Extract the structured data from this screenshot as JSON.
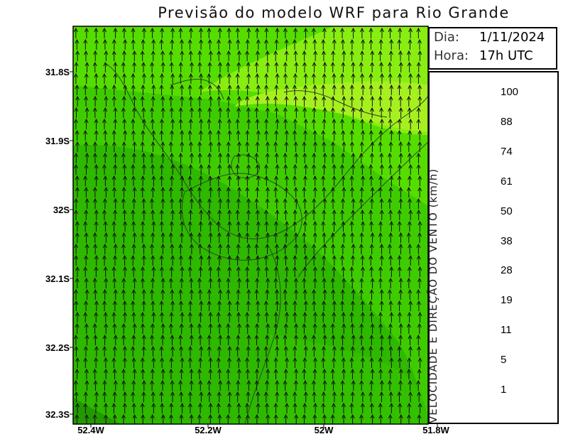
{
  "title": "Previsão do modelo WRF para Rio Grande",
  "info": {
    "day_label": "Dia:",
    "day_value": "1/11/2024",
    "hour_label": "Hora:",
    "hour_value": "17h UTC"
  },
  "colorbar": {
    "label": "VELOCIDADE E DIREÇÃO DO VENTO (km/h)",
    "ticks": [
      "100",
      "88",
      "74",
      "61",
      "50",
      "38",
      "28",
      "19",
      "11",
      "5",
      "1"
    ],
    "colors": [
      "#cc00aa",
      "#b0004a",
      "#9c0000",
      "#d00000",
      "#ff2a00",
      "#ff6a00",
      "#ff9a00",
      "#ffcc00",
      "#ffee00",
      "#ccff00",
      "#88ff00",
      "#44ee00",
      "#22cc00",
      "#11aa00",
      "#007700",
      "#228855",
      "#00aaaa",
      "#22bbdd",
      "#3399ff",
      "#6688ff",
      "#8877ff"
    ]
  },
  "axes": {
    "y_labels": [
      "31.8S",
      "31.9S",
      "32S",
      "32.1S",
      "32.2S",
      "32.3S"
    ],
    "x_labels": [
      "52.4W",
      "52.2W",
      "52W",
      "51.8W"
    ]
  },
  "wind": {
    "direction": "north",
    "speed_range_kmh": [
      19,
      38
    ]
  }
}
